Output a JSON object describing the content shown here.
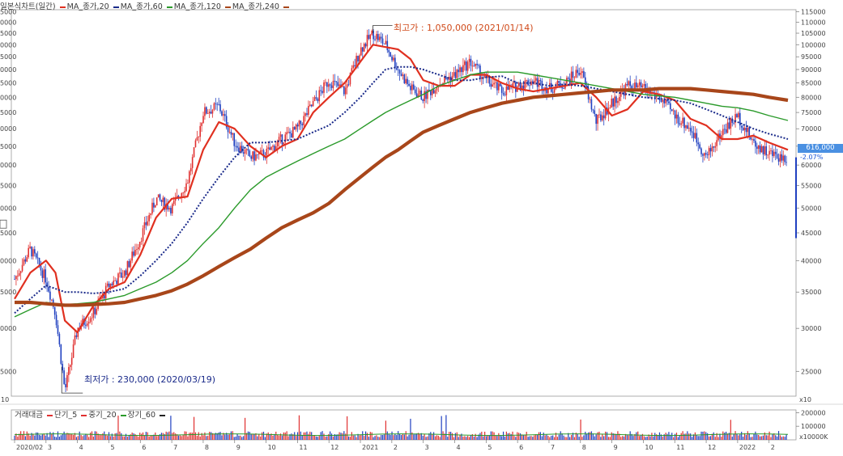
{
  "legend": {
    "title": "일본식차트(일간)",
    "ma20": "MA_종가,20",
    "ma60": "MA_종가,60",
    "ma120": "MA_종가,120",
    "ma240": "MA_종가,240"
  },
  "volume_legend": {
    "title": "거래대금",
    "short": "단기_5",
    "mid": "중기_20",
    "long": "장기_60"
  },
  "annotations": {
    "high": "최고가 : 1,050,000 (2021/01/14)",
    "low": "최저가 : 230,000 (2020/03/19)"
  },
  "current": {
    "price": "616,000",
    "change": "-2.07%"
  },
  "left_tick": "10",
  "right_tick": "x10",
  "vol_scale_label": "x10000K",
  "colors": {
    "up": "#e03030",
    "down": "#2040c0",
    "ma20": "#e03020",
    "ma60": "#1a2a8a",
    "ma120": "#2a9a2a",
    "ma240": "#a8461a"
  },
  "chart_data": {
    "type": "line",
    "title": "일본식차트(일간)",
    "scale": "log",
    "ylim": [
      20000,
      115000
    ],
    "price_ticks": [
      115000,
      110000,
      105000,
      100000,
      95000,
      90000,
      85000,
      80000,
      75000,
      70000,
      65000,
      60000,
      55000,
      50000,
      45000,
      40000,
      35000,
      30000,
      25000
    ],
    "volume_ticks": [
      200000,
      100000
    ],
    "x_labels": [
      "2020/02",
      "3",
      "4",
      "5",
      "6",
      "7",
      "8",
      "9",
      "10",
      "11",
      "12",
      "2021",
      "2",
      "3",
      "4",
      "5",
      "6",
      "7",
      "8",
      "9",
      "10",
      "11",
      "12",
      "2022",
      "2"
    ],
    "x_month_index": [
      0,
      1,
      2,
      3,
      4,
      5,
      6,
      7,
      8,
      9,
      10,
      11,
      12,
      13,
      14,
      15,
      16,
      17,
      18,
      19,
      20,
      21,
      22,
      23,
      24
    ],
    "price_months": [
      0,
      0.5,
      1.0,
      1.3,
      1.6,
      2.0,
      2.5,
      3.0,
      3.5,
      4.0,
      4.5,
      5.0,
      5.5,
      6.0,
      6.5,
      7.0,
      7.5,
      8.0,
      8.5,
      9.0,
      9.5,
      10.0,
      10.5,
      11.0,
      11.4,
      11.8,
      12.2,
      12.6,
      13.0,
      13.5,
      14.0,
      14.5,
      15.0,
      15.5,
      16.0,
      16.5,
      17.0,
      17.5,
      18.0,
      18.5,
      19.0,
      19.5,
      20.0,
      20.5,
      21.0,
      21.5,
      22.0,
      22.5,
      23.0,
      23.5,
      24.0,
      24.6
    ],
    "series": [
      {
        "name": "MA_종가,20",
        "values": [
          34000,
          38000,
          40000,
          38000,
          31000,
          29500,
          33000,
          35500,
          36500,
          41000,
          48000,
          52000,
          52500,
          64000,
          72000,
          70000,
          65000,
          62000,
          65000,
          67000,
          75000,
          80000,
          85000,
          93000,
          100000,
          99000,
          98000,
          94000,
          86000,
          84000,
          84000,
          88000,
          88000,
          85000,
          83000,
          82000,
          83000,
          84000,
          85000,
          80000,
          74000,
          76000,
          82000,
          81000,
          79000,
          73000,
          71000,
          67000,
          67000,
          68000,
          66000,
          64000
        ]
      },
      {
        "name": "MA_종가,60",
        "values": [
          32000,
          34000,
          36000,
          35500,
          35000,
          35000,
          34800,
          35000,
          35500,
          37500,
          40000,
          43000,
          47000,
          52000,
          57000,
          62000,
          66000,
          66000,
          66500,
          67000,
          69000,
          71000,
          75000,
          80000,
          85000,
          90000,
          91000,
          91000,
          90000,
          88000,
          86000,
          86000,
          87000,
          87500,
          85000,
          85000,
          84000,
          84500,
          84000,
          83000,
          82000,
          81000,
          80000,
          79500,
          79000,
          78000,
          76000,
          74000,
          72000,
          70000,
          68500,
          67000
        ]
      },
      {
        "name": "MA_종가,120",
        "values": [
          31500,
          32500,
          33500,
          33300,
          33200,
          33300,
          33500,
          34000,
          34500,
          35500,
          36500,
          38000,
          40000,
          43000,
          46000,
          50000,
          54000,
          57000,
          59000,
          61000,
          63000,
          65000,
          67000,
          70000,
          72500,
          75000,
          77000,
          79000,
          81000,
          84000,
          86000,
          88000,
          89000,
          89000,
          89000,
          88000,
          87000,
          86000,
          85000,
          84000,
          83000,
          82000,
          81000,
          80500,
          80000,
          79000,
          78000,
          77000,
          76500,
          75500,
          74000,
          72500
        ]
      },
      {
        "name": "MA_종가,240",
        "values": [
          33500,
          33500,
          33300,
          33200,
          33100,
          33100,
          33200,
          33300,
          33500,
          34000,
          34500,
          35200,
          36200,
          37500,
          39000,
          40500,
          42000,
          44000,
          46000,
          47500,
          49000,
          51000,
          54000,
          57000,
          59500,
          62000,
          64000,
          66500,
          69000,
          71000,
          73000,
          75000,
          76500,
          78000,
          79000,
          80000,
          80500,
          81000,
          81500,
          82000,
          82500,
          82500,
          82500,
          83000,
          83000,
          83000,
          82500,
          82000,
          81500,
          81000,
          80000,
          79000
        ]
      }
    ],
    "close_prices": [
      37000,
      42000,
      37000,
      32000,
      23000,
      30000,
      32000,
      36000,
      38000,
      44000,
      52000,
      50000,
      56000,
      75000,
      77000,
      66000,
      62000,
      63000,
      67000,
      70000,
      78000,
      86000,
      82000,
      98000,
      105000,
      100000,
      90000,
      83000,
      80000,
      85000,
      88000,
      93000,
      86000,
      82000,
      84000,
      86000,
      83000,
      85000,
      90000,
      72000,
      78000,
      84000,
      83000,
      80000,
      74000,
      70000,
      62000,
      69000,
      74000,
      66000,
      63000,
      61600
    ],
    "low": {
      "value": 230000,
      "date": "2020/03/19"
    },
    "high": {
      "value": 1050000,
      "date": "2021/01/14"
    },
    "last": 616000,
    "change_pct": -2.07
  }
}
